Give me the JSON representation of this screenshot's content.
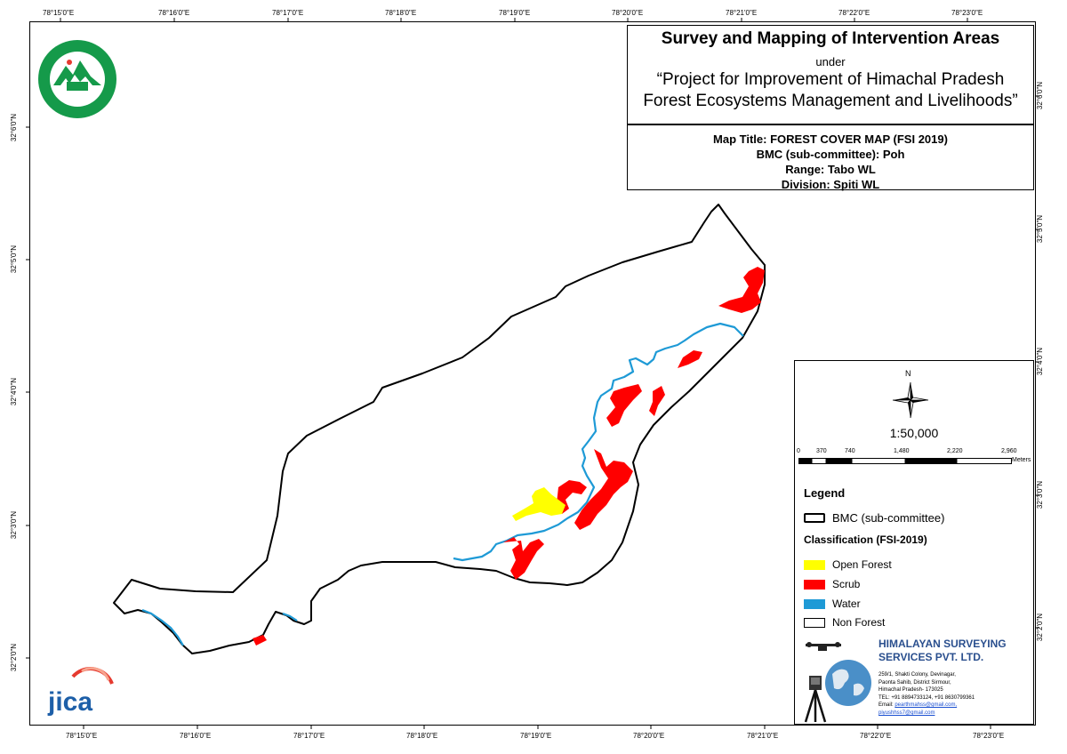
{
  "map": {
    "title": "Survey and Mapping of Intervention Areas",
    "under": "under",
    "project_line1": "“Project for Improvement of Himachal Pradesh",
    "project_line2": "Forest Ecosystems Management and Livelihoods”",
    "map_title": "Map Title: FOREST COVER MAP (FSI 2019)",
    "bmc": "BMC (sub-committee): Poh",
    "range": "Range: Tabo WL",
    "division": "Division: Spiti WL"
  },
  "graticule": {
    "top": [
      "78°15'0\"E",
      "78°16'0\"E",
      "78°17'0\"E",
      "78°18'0\"E",
      "78°19'0\"E",
      "78°20'0\"E",
      "78°21'0\"E",
      "78°22'0\"E",
      "78°23'0\"E"
    ],
    "bottom": [
      "78°15'0\"E",
      "78°16'0\"E",
      "78°17'0\"E",
      "78°18'0\"E",
      "78°19'0\"E",
      "78°20'0\"E",
      "78°21'0\"E",
      "78°22'0\"E",
      "78°23'0\"E"
    ],
    "left": [
      "32°6'0\"N",
      "32°5'0\"N",
      "32°4'0\"N",
      "32°3'0\"N",
      "32°2'0\"N"
    ],
    "right": [
      "32°6'0\"N",
      "32°5'0\"N",
      "32°4'0\"N",
      "32°3'0\"N",
      "32°2'0\"N"
    ]
  },
  "north_arrow": {
    "label": "N",
    "icon": "compass-rose-icon"
  },
  "scale": {
    "ratio": "1:50,000",
    "ticks": [
      "0",
      "370",
      "740",
      "1,480",
      "2,220",
      "2,960"
    ],
    "unit": "Meters"
  },
  "legend": {
    "title": "Legend",
    "boundary_label": "BMC (sub-committee)",
    "classification_title": "Classification (FSI-2019)",
    "items": [
      {
        "label": "Open Forest",
        "color": "#ffff00"
      },
      {
        "label": "Scrub",
        "color": "#ff0000"
      },
      {
        "label": "Water",
        "color": "#1e9ad6"
      },
      {
        "label": "Non Forest",
        "color": "#ffffff"
      }
    ]
  },
  "company": {
    "name_line1": "HIMALAYAN SURVEYING",
    "name_line2": "SERVICES PVT. LTD.",
    "address": [
      "259/1, Shakti Colony, Devinagar,",
      "Paonta Sahib, District Sirmour,",
      "Himachal Pradesh- 173025",
      "TEL: +91 8894733124, +91 8630799361"
    ],
    "email_label": "Email:",
    "email1": "pearthmahss@gmail.com,",
    "email2": "piyushhss7@gmail.com"
  },
  "logos": {
    "forest_dept": "forest-department-emblem",
    "jica": "jica"
  },
  "colors": {
    "boundary": "#000000",
    "water": "#1e9ad6",
    "scrub": "#ff0000",
    "open_forest": "#ffff00",
    "company": "#2a4f8e"
  }
}
